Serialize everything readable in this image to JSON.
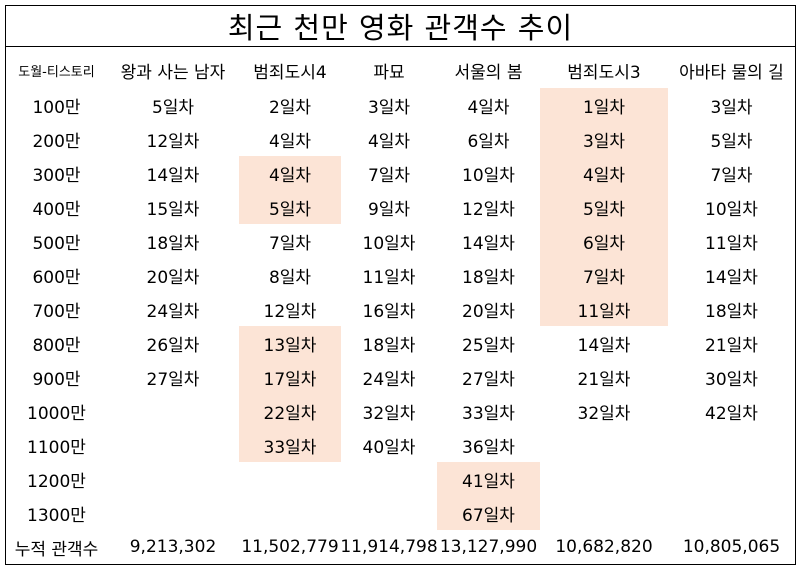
{
  "title": "최근 천만 영화 관객수 추이",
  "chart_data": {
    "type": "table",
    "title": "최근 천만 영화 관객수 추이",
    "corner_label": "도월-티스토리",
    "columns": [
      "왕과 사는 남자",
      "범죄도시4",
      "파묘",
      "서울의 봄",
      "범죄도시3",
      "아바타 물의 길"
    ],
    "rows": [
      {
        "label": "100만",
        "cells": [
          "5일차",
          "2일차",
          "3일차",
          "4일차",
          "1일차",
          "3일차"
        ]
      },
      {
        "label": "200만",
        "cells": [
          "12일차",
          "4일차",
          "4일차",
          "6일차",
          "3일차",
          "5일차"
        ]
      },
      {
        "label": "300만",
        "cells": [
          "14일차",
          "4일차",
          "7일차",
          "10일차",
          "4일차",
          "7일차"
        ]
      },
      {
        "label": "400만",
        "cells": [
          "15일차",
          "5일차",
          "9일차",
          "12일차",
          "5일차",
          "10일차"
        ]
      },
      {
        "label": "500만",
        "cells": [
          "18일차",
          "7일차",
          "10일차",
          "14일차",
          "6일차",
          "11일차"
        ]
      },
      {
        "label": "600만",
        "cells": [
          "20일차",
          "8일차",
          "11일차",
          "18일차",
          "7일차",
          "14일차"
        ]
      },
      {
        "label": "700만",
        "cells": [
          "24일차",
          "12일차",
          "16일차",
          "20일차",
          "11일차",
          "18일차"
        ]
      },
      {
        "label": "800만",
        "cells": [
          "26일차",
          "13일차",
          "18일차",
          "25일차",
          "14일차",
          "21일차"
        ]
      },
      {
        "label": "900만",
        "cells": [
          "27일차",
          "17일차",
          "24일차",
          "27일차",
          "21일차",
          "30일차"
        ]
      },
      {
        "label": "1000만",
        "cells": [
          "",
          "22일차",
          "32일차",
          "33일차",
          "32일차",
          "42일차"
        ]
      },
      {
        "label": "1100만",
        "cells": [
          "",
          "33일차",
          "40일차",
          "36일차",
          "",
          ""
        ]
      },
      {
        "label": "1200만",
        "cells": [
          "",
          "",
          "",
          "41일차",
          "",
          ""
        ]
      },
      {
        "label": "1300만",
        "cells": [
          "",
          "",
          "",
          "67일차",
          "",
          ""
        ]
      }
    ],
    "total_label": "누적 관객수",
    "totals": [
      "9,213,302",
      "11,502,779",
      "11,914,798",
      "13,127,990",
      "10,682,820",
      "10,805,065"
    ],
    "highlight_color": "#fce4d6",
    "highlighted_cells": [
      [
        2,
        1
      ],
      [
        3,
        1
      ],
      [
        7,
        1
      ],
      [
        8,
        1
      ],
      [
        9,
        1
      ],
      [
        10,
        1
      ],
      [
        0,
        4
      ],
      [
        1,
        4
      ],
      [
        2,
        4
      ],
      [
        3,
        4
      ],
      [
        4,
        4
      ],
      [
        5,
        4
      ],
      [
        6,
        4
      ],
      [
        11,
        3
      ],
      [
        12,
        3
      ]
    ]
  }
}
